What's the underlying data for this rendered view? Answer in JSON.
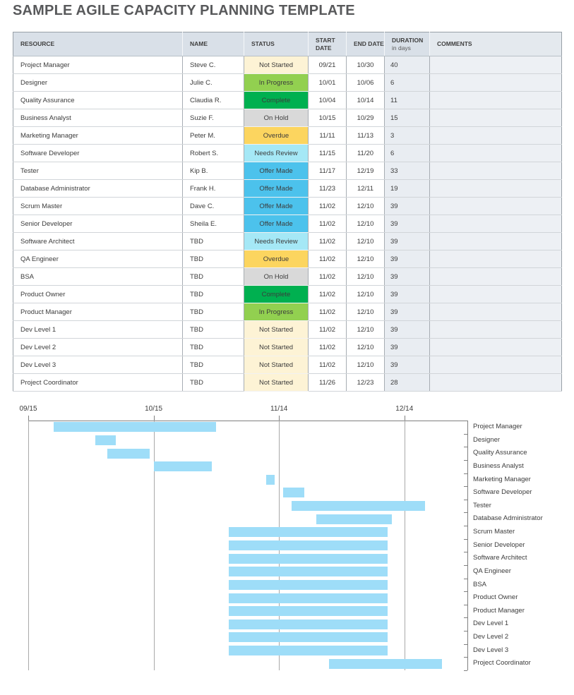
{
  "title": "SAMPLE AGILE CAPACITY PLANNING TEMPLATE",
  "table": {
    "columns": [
      {
        "label": "RESOURCE"
      },
      {
        "label": "NAME"
      },
      {
        "label": "STATUS"
      },
      {
        "label": "START DATE"
      },
      {
        "label": "END DATE"
      },
      {
        "label": "DURATION",
        "sublabel": "in days"
      },
      {
        "label": "COMMENTS"
      }
    ],
    "rows": [
      {
        "resource": "Project Manager",
        "name": "Steve C.",
        "status": "Not Started",
        "start": "09/21",
        "end": "10/30",
        "duration": "40",
        "comments": ""
      },
      {
        "resource": "Designer",
        "name": "Julie C.",
        "status": "In Progress",
        "start": "10/01",
        "end": "10/06",
        "duration": "6",
        "comments": ""
      },
      {
        "resource": "Quality Assurance",
        "name": "Claudia R.",
        "status": "Complete",
        "start": "10/04",
        "end": "10/14",
        "duration": "11",
        "comments": ""
      },
      {
        "resource": "Business Analyst",
        "name": "Suzie F.",
        "status": "On Hold",
        "start": "10/15",
        "end": "10/29",
        "duration": "15",
        "comments": ""
      },
      {
        "resource": "Marketing Manager",
        "name": "Peter M.",
        "status": "Overdue",
        "start": "11/11",
        "end": "11/13",
        "duration": "3",
        "comments": ""
      },
      {
        "resource": "Software Developer",
        "name": "Robert S.",
        "status": "Needs Review",
        "start": "11/15",
        "end": "11/20",
        "duration": "6",
        "comments": ""
      },
      {
        "resource": "Tester",
        "name": "Kip B.",
        "status": "Offer Made",
        "start": "11/17",
        "end": "12/19",
        "duration": "33",
        "comments": ""
      },
      {
        "resource": "Database Administrator",
        "name": "Frank H.",
        "status": "Offer Made",
        "start": "11/23",
        "end": "12/11",
        "duration": "19",
        "comments": ""
      },
      {
        "resource": "Scrum Master",
        "name": "Dave C.",
        "status": "Offer Made",
        "start": "11/02",
        "end": "12/10",
        "duration": "39",
        "comments": ""
      },
      {
        "resource": "Senior Developer",
        "name": "Sheila E.",
        "status": "Offer Made",
        "start": "11/02",
        "end": "12/10",
        "duration": "39",
        "comments": ""
      },
      {
        "resource": "Software Architect",
        "name": "TBD",
        "status": "Needs Review",
        "start": "11/02",
        "end": "12/10",
        "duration": "39",
        "comments": ""
      },
      {
        "resource": "QA Engineer",
        "name": "TBD",
        "status": "Overdue",
        "start": "11/02",
        "end": "12/10",
        "duration": "39",
        "comments": ""
      },
      {
        "resource": "BSA",
        "name": "TBD",
        "status": "On Hold",
        "start": "11/02",
        "end": "12/10",
        "duration": "39",
        "comments": ""
      },
      {
        "resource": "Product Owner",
        "name": "TBD",
        "status": "Complete",
        "start": "11/02",
        "end": "12/10",
        "duration": "39",
        "comments": ""
      },
      {
        "resource": "Product Manager",
        "name": "TBD",
        "status": "In Progress",
        "start": "11/02",
        "end": "12/10",
        "duration": "39",
        "comments": ""
      },
      {
        "resource": "Dev Level 1",
        "name": "TBD",
        "status": "Not Started",
        "start": "11/02",
        "end": "12/10",
        "duration": "39",
        "comments": ""
      },
      {
        "resource": "Dev Level 2",
        "name": "TBD",
        "status": "Not Started",
        "start": "11/02",
        "end": "12/10",
        "duration": "39",
        "comments": ""
      },
      {
        "resource": "Dev Level 3",
        "name": "TBD",
        "status": "Not Started",
        "start": "11/02",
        "end": "12/10",
        "duration": "39",
        "comments": ""
      },
      {
        "resource": "Project Coordinator",
        "name": "TBD",
        "status": "Not Started",
        "start": "11/26",
        "end": "12/23",
        "duration": "28",
        "comments": ""
      }
    ]
  },
  "status_colors": {
    "Not Started": "#fdf3d5",
    "In Progress": "#92d050",
    "Complete": "#00b050",
    "On Hold": "#d9d9d9",
    "Overdue": "#fcd55f",
    "Needs Review": "#a5e8f6",
    "Offer Made": "#4cc2ec"
  },
  "chart_data": {
    "type": "bar",
    "variant": "gantt-horizontal",
    "title": "",
    "bar_color": "#9EDDF8",
    "x_axis": {
      "ticks": [
        "09/15",
        "10/15",
        "11/14",
        "12/14"
      ],
      "start": "09/15",
      "end_visible": "12/29",
      "grid": true
    },
    "legend": "none",
    "tasks": [
      {
        "label": "Project Manager",
        "start": "09/21",
        "end": "10/30"
      },
      {
        "label": "Designer",
        "start": "10/01",
        "end": "10/06"
      },
      {
        "label": "Quality Assurance",
        "start": "10/04",
        "end": "10/14"
      },
      {
        "label": "Business Analyst",
        "start": "10/15",
        "end": "10/29"
      },
      {
        "label": "Marketing Manager",
        "start": "11/11",
        "end": "11/13"
      },
      {
        "label": "Software Developer",
        "start": "11/15",
        "end": "11/20"
      },
      {
        "label": "Tester",
        "start": "11/17",
        "end": "12/19"
      },
      {
        "label": "Database Administrator",
        "start": "11/23",
        "end": "12/11"
      },
      {
        "label": "Scrum Master",
        "start": "11/02",
        "end": "12/10"
      },
      {
        "label": "Senior Developer",
        "start": "11/02",
        "end": "12/10"
      },
      {
        "label": "Software Architect",
        "start": "11/02",
        "end": "12/10"
      },
      {
        "label": "QA Engineer",
        "start": "11/02",
        "end": "12/10"
      },
      {
        "label": "BSA",
        "start": "11/02",
        "end": "12/10"
      },
      {
        "label": "Product Owner",
        "start": "11/02",
        "end": "12/10"
      },
      {
        "label": "Product Manager",
        "start": "11/02",
        "end": "12/10"
      },
      {
        "label": "Dev Level 1",
        "start": "11/02",
        "end": "12/10"
      },
      {
        "label": "Dev Level 2",
        "start": "11/02",
        "end": "12/10"
      },
      {
        "label": "Dev Level 3",
        "start": "11/02",
        "end": "12/10"
      },
      {
        "label": "Project Coordinator",
        "start": "11/26",
        "end": "12/23"
      }
    ]
  }
}
